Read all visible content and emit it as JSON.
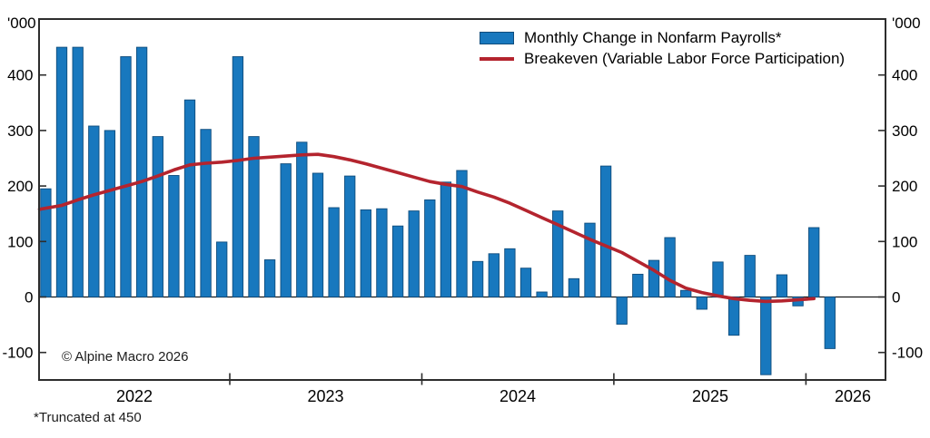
{
  "chart_data": {
    "type": "bar+line",
    "axis_unit": "'000",
    "copyright": "© Alpine Macro 2026",
    "footnote": "*Truncated at 450",
    "truncated_at": 450,
    "grid": "off",
    "legend_position": "top-right-inside",
    "year_labels": [
      "2022",
      "2023",
      "2024",
      "2025",
      "2026"
    ],
    "y_ticks": [
      400,
      300,
      200,
      100,
      0,
      -100
    ],
    "ylim": [
      -150,
      500
    ],
    "months": [
      "Jan 2022",
      "Feb 2022",
      "Mar 2022",
      "Apr 2022",
      "May 2022",
      "Jun 2022",
      "Jul 2022",
      "Aug 2022",
      "Sep 2022",
      "Oct 2022",
      "Nov 2022",
      "Dec 2022",
      "Jan 2023",
      "Feb 2023",
      "Mar 2023",
      "Apr 2023",
      "May 2023",
      "Jun 2023",
      "Jul 2023",
      "Aug 2023",
      "Sep 2023",
      "Oct 2023",
      "Nov 2023",
      "Dec 2023",
      "Jan 2024",
      "Feb 2024",
      "Mar 2024",
      "Apr 2024",
      "May 2024",
      "Jun 2024",
      "Jul 2024",
      "Aug 2024",
      "Sep 2024",
      "Oct 2024",
      "Nov 2024",
      "Dec 2024",
      "Jan 2025",
      "Feb 2025",
      "Mar 2025",
      "Apr 2025",
      "May 2025",
      "Jun 2025",
      "Jul 2025",
      "Aug 2025",
      "Sep 2025",
      "Oct 2025",
      "Nov 2025",
      "Dec 2025",
      "Jan 2026",
      "Feb 2026"
    ],
    "series": [
      {
        "name": "Monthly Change in Nonfarm Payrolls*",
        "type": "bar",
        "color": "#1878be",
        "edge_color": "#0f4c7c",
        "values": [
          195,
          450,
          450,
          308,
          300,
          433,
          450,
          289,
          219,
          355,
          302,
          99,
          433,
          289,
          67,
          240,
          279,
          223,
          161,
          218,
          157,
          159,
          128,
          155,
          175,
          207,
          228,
          64,
          78,
          87,
          52,
          9,
          155,
          33,
          133,
          236,
          -49,
          41,
          66,
          107,
          12,
          -22,
          63,
          -69,
          75,
          -140,
          40,
          -16,
          125,
          -93
        ]
      },
      {
        "name": "Breakeven (Variable Labor Force Participation)",
        "type": "line",
        "color": "#b4242e",
        "values": [
          158,
          165,
          175,
          184,
          192,
          200,
          208,
          218,
          229,
          238,
          241,
          243,
          246,
          250,
          252,
          254,
          256,
          257,
          253,
          247,
          240,
          232,
          224,
          216,
          208,
          203,
          199,
          189,
          180,
          169,
          156,
          143,
          130,
          117,
          104,
          92,
          80,
          64,
          48,
          30,
          16,
          8,
          2,
          -3,
          -6,
          -8,
          -7,
          -5,
          -3,
          null
        ]
      }
    ]
  }
}
